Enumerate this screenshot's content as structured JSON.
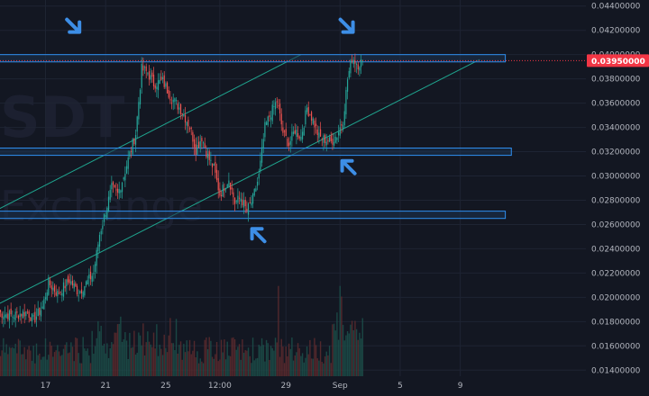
{
  "watermark": {
    "line1": "SDT",
    "line2": "Exchange"
  },
  "colors": {
    "background": "#131722",
    "grid": "#1e2433",
    "up": "#26a69a",
    "down": "#ef5350",
    "zone_stroke": "#2f8ff0",
    "zone_fill": "#1b3350",
    "trendline": "#1fa58f",
    "arrow": "#3d8ee6",
    "price_tag": "#f23645",
    "text": "#b2b5be"
  },
  "chart_data": {
    "type": "candlestick",
    "instrument": "SDT",
    "y_axis": {
      "ylim": [
        0.0135,
        0.0445
      ],
      "ticks": [
        "0.01400000",
        "0.01600000",
        "0.01800000",
        "0.02000000",
        "0.02200000",
        "0.02400000",
        "0.02600000",
        "0.02800000",
        "0.03000000",
        "0.03200000",
        "0.03400000",
        "0.03600000",
        "0.03800000",
        "0.04000000",
        "0.04200000",
        "0.04400000"
      ],
      "tick_values": [
        0.014,
        0.016,
        0.018,
        0.02,
        0.022,
        0.024,
        0.026,
        0.028,
        0.03,
        0.032,
        0.034,
        0.036,
        0.038,
        0.04,
        0.042,
        0.044
      ]
    },
    "x_axis": {
      "ticks": [
        "17",
        "21",
        "25",
        "12:00",
        "29",
        "Sep",
        "5",
        "9"
      ],
      "tick_index": [
        30,
        70,
        110,
        146,
        190,
        226,
        266,
        306
      ]
    },
    "current_price": {
      "label": "0.03950000",
      "value": 0.0395
    },
    "zones": [
      {
        "name": "resistance",
        "low": 0.0394,
        "high": 0.04,
        "i0": -15,
        "i1": 336
      },
      {
        "name": "middle-support",
        "low": 0.0317,
        "high": 0.0323,
        "i0": -11,
        "i1": 340
      },
      {
        "name": "lower-support",
        "low": 0.0265,
        "high": 0.0271,
        "i0": -13,
        "i1": 336
      }
    ],
    "trendlines": [
      {
        "name": "upper-channel",
        "i0": -37,
        "v0": 0.025,
        "i1": 200,
        "v1": 0.04
      },
      {
        "name": "lower-channel",
        "i0": -37,
        "v0": 0.0172,
        "i1": 319,
        "v1": 0.0396
      }
    ],
    "arrows": [
      {
        "name": "arrow-resistance-left",
        "i": 49,
        "v": 0.0423,
        "dir": "down-right"
      },
      {
        "name": "arrow-resistance-right",
        "i": 231,
        "v": 0.0423,
        "dir": "down-right"
      },
      {
        "name": "arrow-middle-support",
        "i": 231,
        "v": 0.0308,
        "dir": "up-left"
      },
      {
        "name": "arrow-lower-support",
        "i": 171,
        "v": 0.0252,
        "dir": "up-left"
      }
    ],
    "keypoints": [
      [
        0,
        0.0187
      ],
      [
        8,
        0.0185
      ],
      [
        18,
        0.0188
      ],
      [
        22,
        0.0181
      ],
      [
        28,
        0.0192
      ],
      [
        32,
        0.0212
      ],
      [
        38,
        0.0203
      ],
      [
        46,
        0.0214
      ],
      [
        52,
        0.0204
      ],
      [
        58,
        0.0213
      ],
      [
        62,
        0.022
      ],
      [
        66,
        0.0252
      ],
      [
        70,
        0.0271
      ],
      [
        74,
        0.029
      ],
      [
        78,
        0.0285
      ],
      [
        82,
        0.03
      ],
      [
        86,
        0.0318
      ],
      [
        90,
        0.0335
      ],
      [
        94,
        0.0388
      ],
      [
        98,
        0.0385
      ],
      [
        102,
        0.0376
      ],
      [
        108,
        0.0378
      ],
      [
        114,
        0.0364
      ],
      [
        120,
        0.0355
      ],
      [
        126,
        0.0341
      ],
      [
        130,
        0.0322
      ],
      [
        134,
        0.0332
      ],
      [
        138,
        0.0316
      ],
      [
        142,
        0.0306
      ],
      [
        146,
        0.0285
      ],
      [
        152,
        0.0298
      ],
      [
        156,
        0.0278
      ],
      [
        160,
        0.0282
      ],
      [
        164,
        0.0271
      ],
      [
        168,
        0.0281
      ],
      [
        172,
        0.03
      ],
      [
        176,
        0.034
      ],
      [
        180,
        0.0352
      ],
      [
        184,
        0.0362
      ],
      [
        188,
        0.0336
      ],
      [
        192,
        0.0326
      ],
      [
        196,
        0.0338
      ],
      [
        200,
        0.0332
      ],
      [
        204,
        0.0356
      ],
      [
        208,
        0.0346
      ],
      [
        212,
        0.0332
      ],
      [
        216,
        0.033
      ],
      [
        220,
        0.0328
      ],
      [
        224,
        0.0334
      ],
      [
        228,
        0.0346
      ],
      [
        231,
        0.038
      ],
      [
        234,
        0.0398
      ],
      [
        238,
        0.0392
      ],
      [
        241,
        0.0395
      ]
    ],
    "volume": {
      "max": 1.0,
      "seed": 7,
      "spikes": [
        [
          185,
          0.85
        ],
        [
          226,
          0.85
        ],
        [
          227,
          0.75
        ],
        [
          224,
          0.6
        ]
      ]
    }
  }
}
